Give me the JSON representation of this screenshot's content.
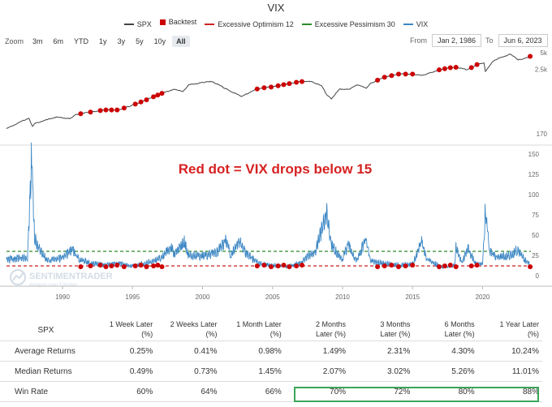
{
  "title": "VIX",
  "legend": [
    {
      "label": "SPX",
      "kind": "line",
      "color": "#444444"
    },
    {
      "label": "Backtest",
      "kind": "square",
      "color": "#cc0000"
    },
    {
      "label": "Excessive Optimism 12",
      "kind": "dash",
      "color": "#cc2222"
    },
    {
      "label": "Excessive Pessimism 30",
      "kind": "dash",
      "color": "#2a8a2a"
    },
    {
      "label": "VIX",
      "kind": "line",
      "color": "#3b86c4"
    }
  ],
  "zoom": {
    "label": "Zoom",
    "buttons": [
      "3m",
      "6m",
      "YTD",
      "1y",
      "3y",
      "5y",
      "10y",
      "All"
    ],
    "active": "All"
  },
  "range": {
    "from_label": "From",
    "from": "Jan 2, 1986",
    "to_label": "To",
    "to": "Jun 6, 2023"
  },
  "annotation": "Red dot = VIX drops below 15",
  "watermark": {
    "name": "SENTIMENTRADER",
    "tagline": "Analysis over Emotion"
  },
  "chart_data": [
    {
      "type": "line",
      "title": "SPX",
      "yscale": "log",
      "ylim": [
        170,
        5000
      ],
      "yticks": [
        "5k",
        "2.5k",
        "170"
      ],
      "x": [
        1986,
        1987.6,
        1987.85,
        1988,
        1989.5,
        1990.5,
        1991,
        1992,
        1993,
        1994,
        1995,
        1996,
        1997,
        1998,
        1998.6,
        1999,
        2000,
        2000.7,
        2001.7,
        2002.8,
        2003.5,
        2004,
        2005,
        2006,
        2007,
        2007.8,
        2008.5,
        2008.9,
        2009.2,
        2009.8,
        2010.5,
        2011,
        2011.7,
        2012,
        2013,
        2014,
        2015,
        2015.7,
        2016,
        2017,
        2018,
        2018.95,
        2019.5,
        2020.1,
        2020.2,
        2020.7,
        2021,
        2022,
        2022.5,
        2022.9,
        2023.4
      ],
      "values": [
        210,
        330,
        230,
        260,
        340,
        320,
        380,
        420,
        460,
        460,
        560,
        700,
        900,
        1100,
        980,
        1300,
        1450,
        1500,
        1100,
        800,
        1000,
        1130,
        1200,
        1350,
        1500,
        1500,
        1250,
        850,
        730,
        1100,
        1080,
        1320,
        1150,
        1400,
        1800,
        2050,
        2050,
        1920,
        2050,
        2500,
        2750,
        2450,
        3000,
        3300,
        2300,
        3400,
        3800,
        4750,
        3750,
        3850,
        4300
      ]
    },
    {
      "type": "scatter",
      "title": "Backtest",
      "xlabel": "VIX drops below 15",
      "x": [
        1991.3,
        1992.0,
        1992.7,
        1993.1,
        1993.5,
        1993.9,
        1994.4,
        1995.2,
        1995.6,
        1996.0,
        1996.5,
        1996.8,
        1997.1,
        2003.9,
        2004.4,
        2004.9,
        2005.4,
        2005.8,
        2006.2,
        2006.7,
        2007.1,
        2012.5,
        2013.0,
        2013.5,
        2014.0,
        2014.5,
        2015.0,
        2016.9,
        2017.3,
        2017.7,
        2018.1,
        2019.2,
        2019.6,
        2023.4
      ]
    },
    {
      "type": "line",
      "title": "VIX",
      "xlabel": "",
      "ylim": [
        0,
        150
      ],
      "yticks": [
        0,
        25,
        50,
        75,
        100,
        125,
        150
      ],
      "xticks": [
        "1990",
        "1995",
        "2000",
        "2005",
        "2010",
        "2015",
        "2020"
      ],
      "x": [
        1986,
        1987.5,
        1987.8,
        1988.0,
        1988.5,
        1989,
        1990,
        1990.7,
        1991.2,
        1992,
        1993,
        1994,
        1995,
        1996,
        1997,
        1997.8,
        1998,
        1998.7,
        1999,
        2000,
        2001,
        2001.7,
        2002,
        2002.6,
        2003,
        2003.5,
        2004,
        2005,
        2006,
        2007,
        2007.6,
        2008,
        2008.85,
        2009.2,
        2009.7,
        2010,
        2010.4,
        2010.9,
        2011,
        2011.65,
        2012,
        2013,
        2014,
        2015,
        2015.65,
        2016,
        2017,
        2018,
        2018.1,
        2018.5,
        2018.95,
        2019.5,
        2020,
        2020.2,
        2020.5,
        2021,
        2022,
        2022.5,
        2023,
        2023.4
      ],
      "values": [
        20,
        22,
        150,
        45,
        28,
        18,
        22,
        32,
        20,
        16,
        13,
        15,
        12,
        16,
        22,
        36,
        25,
        44,
        25,
        24,
        28,
        43,
        25,
        45,
        30,
        22,
        15,
        13,
        12,
        15,
        25,
        25,
        80,
        40,
        24,
        20,
        38,
        20,
        18,
        45,
        18,
        15,
        13,
        14,
        40,
        20,
        11,
        13,
        37,
        15,
        33,
        15,
        15,
        82,
        30,
        22,
        25,
        32,
        20,
        13
      ]
    },
    {
      "type": "table",
      "title": "SPX",
      "columns": [
        "1 Week Later (%)",
        "2 Weeks Later (%)",
        "1 Month Later (%)",
        "2 Months Later (%)",
        "3 Months Later (%)",
        "6 Months Later (%)",
        "1 Year Later (%)"
      ],
      "rows": [
        {
          "label": "Average Returns",
          "values": [
            "0.25%",
            "0.41%",
            "0.98%",
            "1.49%",
            "2.31%",
            "4.30%",
            "10.24%"
          ]
        },
        {
          "label": "Median Returns",
          "values": [
            "0.49%",
            "0.73%",
            "1.45%",
            "2.07%",
            "3.02%",
            "5.26%",
            "11.01%"
          ]
        },
        {
          "label": "Win Rate",
          "values": [
            "60%",
            "64%",
            "66%",
            "70%",
            "72%",
            "80%",
            "88%"
          ]
        }
      ]
    }
  ],
  "thresholds": {
    "optimism": 12,
    "pessimism": 30
  }
}
